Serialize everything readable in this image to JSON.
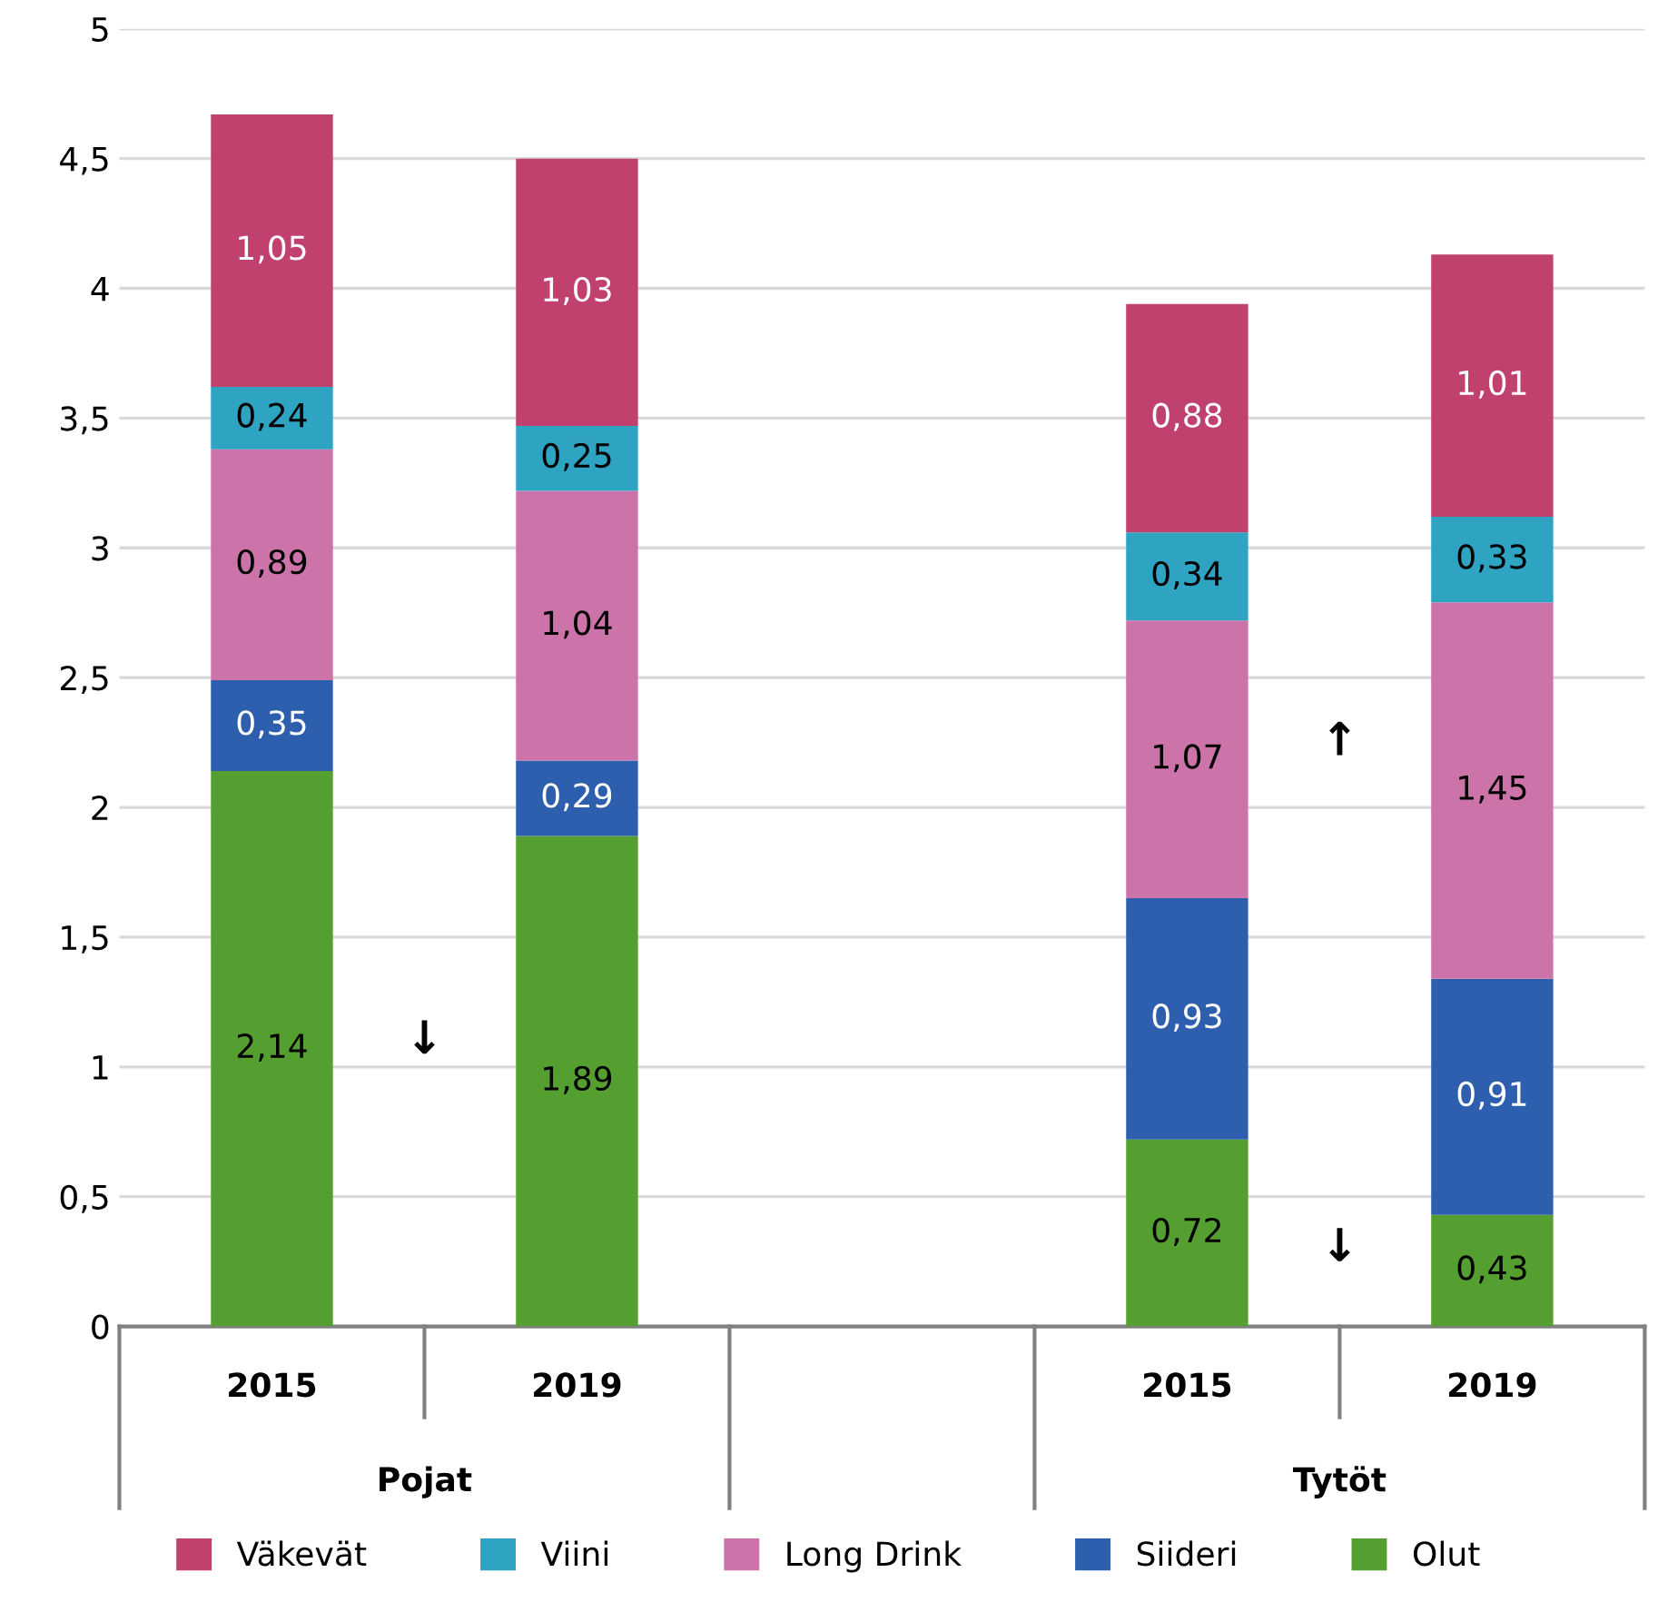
{
  "chart_data": {
    "type": "bar",
    "stacked": true,
    "categories": [
      "2015",
      "2019",
      null,
      "2015",
      "2019"
    ],
    "series": [
      {
        "name": "Olut",
        "color": "#559e30",
        "values": [
          2.14,
          1.89,
          null,
          0.72,
          0.43
        ],
        "value_labels": [
          "2,14",
          "1,89",
          null,
          "0,72",
          "0,43"
        ]
      },
      {
        "name": "Siideri",
        "color": "#2e5fae",
        "values": [
          0.35,
          0.29,
          null,
          0.93,
          0.91
        ],
        "value_labels": [
          "0,35",
          "0,29",
          null,
          "0,93",
          "0,91"
        ]
      },
      {
        "name": "Long Drink",
        "color": "#cc74aa",
        "values": [
          0.89,
          1.04,
          null,
          1.07,
          1.45
        ],
        "value_labels": [
          "0,89",
          "1,04",
          null,
          "1,07",
          "1,45"
        ]
      },
      {
        "name": "Viini",
        "color": "#2ea3c2",
        "values": [
          0.24,
          0.25,
          null,
          0.34,
          0.33
        ],
        "value_labels": [
          "0,24",
          "0,25",
          null,
          "0,34",
          "0,33"
        ]
      },
      {
        "name": "Väkevät",
        "color": "#c0406e",
        "values": [
          1.05,
          1.03,
          null,
          0.88,
          1.01
        ],
        "value_labels": [
          "1,05",
          "1,03",
          null,
          "0,88",
          "1,01"
        ]
      }
    ],
    "ylim": [
      0,
      5
    ],
    "yticks": [
      0,
      {
        "value": 0.5,
        "label": "0,5"
      },
      1,
      {
        "value": 1.5,
        "label": "1,5"
      },
      2,
      {
        "value": 2.5,
        "label": "2,5"
      },
      3,
      {
        "value": 3.5,
        "label": "3,5"
      },
      4,
      {
        "value": 4.5,
        "label": "4,5"
      },
      5
    ],
    "grid": "y",
    "legend": "bottom",
    "annotations": [
      "Pojat",
      "Tytöt",
      "↓",
      "↑",
      "↓"
    ]
  }
}
